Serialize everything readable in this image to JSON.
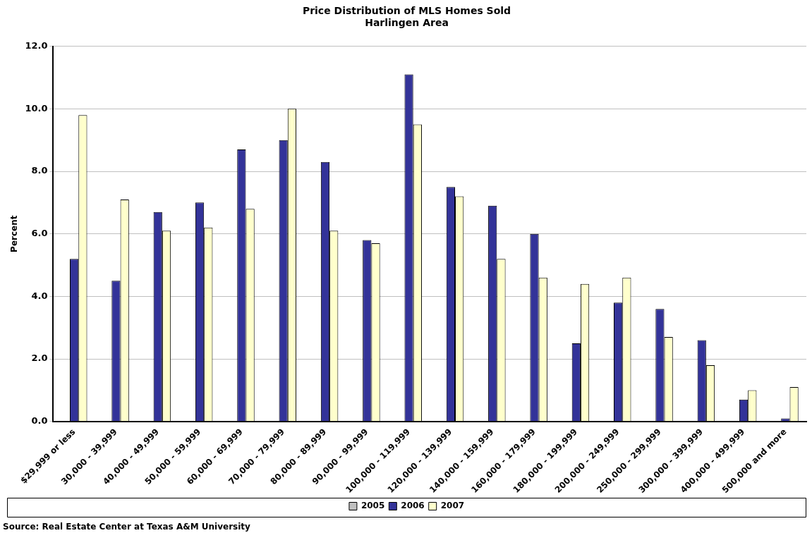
{
  "chart_data": {
    "type": "bar",
    "title": "Price Distribution of MLS Homes Sold",
    "subtitle": "Harlingen Area",
    "ylabel": "Percent",
    "categories": [
      "$29,999 or less",
      "30,000 - 39,999",
      "40,000 - 49,999",
      "50,000 - 59,999",
      "60,000 - 69,999",
      "70,000 - 79,999",
      "80,000 - 89,999",
      "90,000 - 99,999",
      "100,000 - 119,999",
      "120,000 - 139,999",
      "140,000 - 159,999",
      "160,000 - 179,999",
      "180,000 - 199,999",
      "200,000 - 249,999",
      "250,000 - 299,999",
      "300,000 - 399,999",
      "400,000 - 499,999",
      "500,000 and more"
    ],
    "series": [
      {
        "name": "2005",
        "color": "#c0c0c0",
        "values": [
          null,
          null,
          null,
          null,
          null,
          null,
          null,
          null,
          null,
          null,
          null,
          null,
          null,
          null,
          null,
          null,
          null,
          null
        ]
      },
      {
        "name": "2006",
        "color": "#333399",
        "values": [
          5.2,
          4.5,
          6.7,
          7.0,
          8.7,
          9.0,
          8.3,
          5.8,
          11.1,
          7.5,
          6.9,
          6.0,
          2.5,
          3.8,
          3.6,
          2.6,
          0.7,
          0.1
        ]
      },
      {
        "name": "2007",
        "color": "#ffffcc",
        "values": [
          9.8,
          7.1,
          6.1,
          6.2,
          6.8,
          10.0,
          6.1,
          5.7,
          9.5,
          7.2,
          5.2,
          4.6,
          4.4,
          4.6,
          2.7,
          1.8,
          1.0,
          1.1
        ]
      }
    ],
    "ylim": [
      0,
      12
    ],
    "yticks": [
      {
        "value": 0,
        "label": "0.0"
      },
      {
        "value": 2,
        "label": "2.0"
      },
      {
        "value": 4,
        "label": "4.0"
      },
      {
        "value": 6,
        "label": "6.0"
      },
      {
        "value": 8,
        "label": "8.0"
      },
      {
        "value": 10,
        "label": "10.0"
      },
      {
        "value": 12,
        "label": "12.0"
      }
    ],
    "grid": "y",
    "legend": "bottom",
    "annotations": [
      "Source: Real Estate Center at Texas A&M University"
    ]
  }
}
